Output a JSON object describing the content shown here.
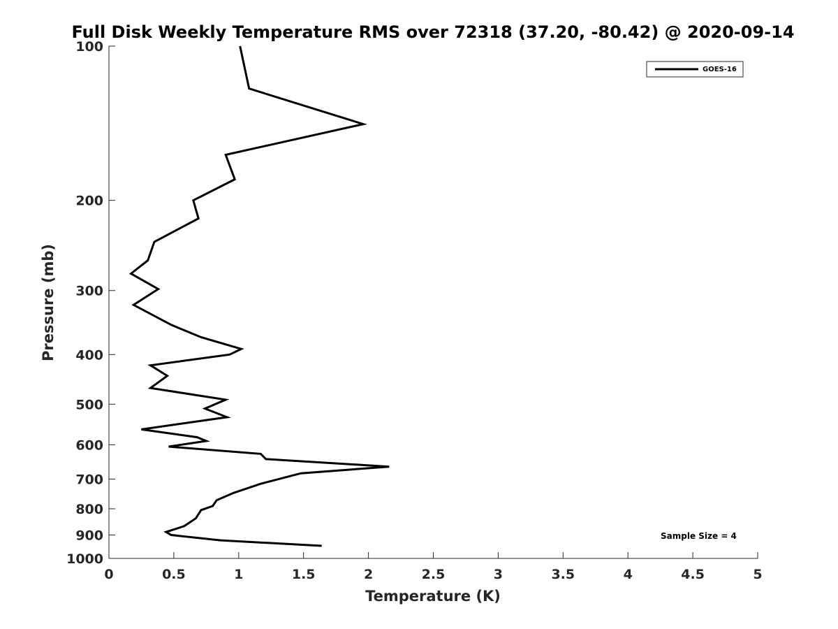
{
  "chart_data": {
    "type": "line",
    "title": "Full Disk Weekly Temperature RMS over 72318 (37.20, -80.42) @ 2020-09-14",
    "xlabel": "Temperature (K)",
    "ylabel": "Pressure (mb)",
    "xlim": [
      0,
      5
    ],
    "ylim": [
      100,
      1000
    ],
    "yscale": "log",
    "y_reversed": true,
    "grid": false,
    "legend_position": "top-right",
    "x_ticks": [
      "0",
      "0.5",
      "1",
      "1.5",
      "2",
      "2.5",
      "3",
      "3.5",
      "4",
      "4.5",
      "5"
    ],
    "y_ticks": [
      "100",
      "200",
      "300",
      "400",
      "500",
      "600",
      "700",
      "800",
      "900",
      "1000"
    ],
    "series": [
      {
        "name": "GOES-16",
        "color": "#000000",
        "points": [
          [
            1.01,
            100
          ],
          [
            1.08,
            121
          ],
          [
            1.96,
            142
          ],
          [
            0.9,
            163
          ],
          [
            0.97,
            182
          ],
          [
            0.65,
            200
          ],
          [
            0.69,
            217
          ],
          [
            0.35,
            241
          ],
          [
            0.3,
            262
          ],
          [
            0.17,
            278
          ],
          [
            0.38,
            298
          ],
          [
            0.19,
            320
          ],
          [
            0.48,
            350
          ],
          [
            0.71,
            370
          ],
          [
            1.02,
            390
          ],
          [
            0.93,
            400
          ],
          [
            0.32,
            420
          ],
          [
            0.45,
            440
          ],
          [
            0.32,
            465
          ],
          [
            0.9,
            490
          ],
          [
            0.74,
            510
          ],
          [
            0.91,
            530
          ],
          [
            0.25,
            560
          ],
          [
            0.68,
            580
          ],
          [
            0.75,
            590
          ],
          [
            0.46,
            605
          ],
          [
            1.17,
            625
          ],
          [
            1.21,
            640
          ],
          [
            2.16,
            662
          ],
          [
            1.48,
            682
          ],
          [
            1.17,
            715
          ],
          [
            0.96,
            745
          ],
          [
            0.83,
            770
          ],
          [
            0.8,
            790
          ],
          [
            0.71,
            805
          ],
          [
            0.67,
            835
          ],
          [
            0.58,
            865
          ],
          [
            0.44,
            888
          ],
          [
            0.48,
            900
          ],
          [
            0.86,
            922
          ],
          [
            1.64,
            945
          ]
        ]
      }
    ],
    "annotation": "Sample Size = 4"
  }
}
